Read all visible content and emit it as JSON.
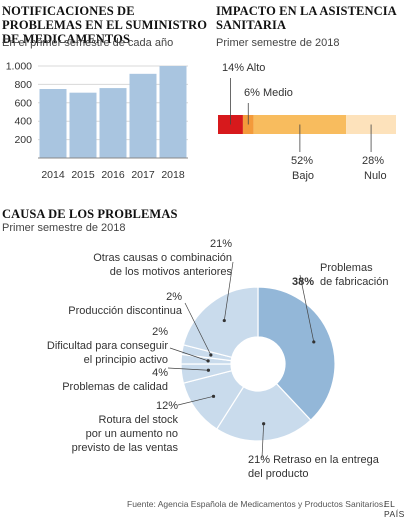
{
  "chart_data": [
    {
      "type": "bar",
      "title": "NOTIFICACIONES DE PROBLEMAS EN EL SUMINISTRO DE MEDICAMENTOS",
      "subtitle": "En el primer semestre de cada año",
      "categories": [
        "2014",
        "2015",
        "2016",
        "2017",
        "2018"
      ],
      "values": [
        750,
        710,
        760,
        915,
        1000
      ],
      "ylim": [
        0,
        1000
      ],
      "yticks": [
        "200",
        "400",
        "600",
        "800",
        "1.000"
      ],
      "color": "#a9c5e0",
      "grid": true
    },
    {
      "type": "bar",
      "title": "IMPACTO EN LA ASISTENCIA SANITARIA",
      "subtitle": "Primer semestre de 2018",
      "stacked": true,
      "segments": [
        {
          "name": "Alto",
          "pct_label": "14%",
          "value": 14,
          "color": "#d7191c"
        },
        {
          "name": "Medio",
          "pct_label": "6%",
          "value": 6,
          "color": "#f39a3b"
        },
        {
          "name": "Bajo",
          "pct_label": "52%",
          "value": 52,
          "color": "#f8bc5e"
        },
        {
          "name": "Nulo",
          "pct_label": "28%",
          "value": 28,
          "color": "#fde2bb"
        }
      ],
      "labels": {
        "alto": "14% Alto",
        "medio": "6% Medio",
        "bajo_pct": "52%",
        "bajo": "Bajo",
        "nulo_pct": "28%",
        "nulo": "Nulo"
      }
    },
    {
      "type": "pie",
      "title": "CAUSA DE LOS PROBLEMAS",
      "subtitle": "Primer semestre de 2018",
      "slices": [
        {
          "name": "Problemas de fabricación",
          "value": 38,
          "color": "#93b7d8"
        },
        {
          "name": "Retraso en la entrega del producto",
          "value": 21,
          "color": "#c9dbec"
        },
        {
          "name": "Rotura del stock por un aumento no previsto de las ventas",
          "value": 12,
          "color": "#c9dbec"
        },
        {
          "name": "Problemas de calidad",
          "value": 4,
          "color": "#c9dbec"
        },
        {
          "name": "Dificultad para conseguir el principio activo",
          "value": 2,
          "color": "#c9dbec"
        },
        {
          "name": "Producción discontinua",
          "value": 2,
          "color": "#c9dbec"
        },
        {
          "name": "Otras causas o combinación de los motivos anteriores",
          "value": 21,
          "color": "#c9dbec"
        }
      ],
      "labels": {
        "fabricacion_pct": "38%",
        "fabricacion": "Problemas\nde fabricación",
        "retraso": "21%     Retraso en la entrega\n            del producto",
        "rotura": "12%\nRotura del stock\npor un aumento no\nprevisto de las ventas",
        "calidad": "4%\nProblemas de calidad",
        "dificultad": "2%\nDificultad para conseguir\nel principio activo",
        "produccion": "2%\nProducción discontinua",
        "otras": "21%\nOtras causas o combinación\nde los motivos anteriores"
      }
    }
  ],
  "footer": {
    "source": "Fuente: Agencia Española de Medicamentos y Productos Sanitarios.",
    "brand": "EL PAÍS"
  }
}
